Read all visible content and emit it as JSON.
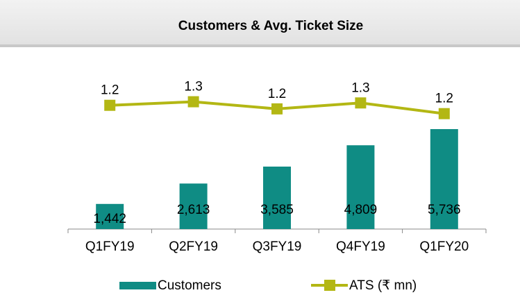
{
  "chart_data": {
    "type": "bar-line",
    "title": "Customers & Avg. Ticket Size",
    "categories": [
      "Q1FY19",
      "Q2FY19",
      "Q3FY19",
      "Q4FY19",
      "Q1FY20"
    ],
    "series": [
      {
        "name": "Customers",
        "color": "#0f8c84",
        "type": "bar",
        "values": [
          1442,
          2613,
          3585,
          4809,
          5736
        ],
        "value_labels": [
          "1,442",
          "2,613",
          "3,585",
          "4,809",
          "5,736"
        ]
      },
      {
        "name": "ATS (₹ mn)",
        "color": "#b3b714",
        "type": "line",
        "axis": "y2",
        "values": [
          1.24,
          1.27,
          1.21,
          1.26,
          1.17
        ],
        "value_labels": [
          "1.2",
          "1.3",
          "1.2",
          "1.3",
          "1.2"
        ]
      }
    ],
    "ylim": [
      0,
      9560
    ],
    "y2lim": [
      0.2,
      1.6
    ]
  }
}
